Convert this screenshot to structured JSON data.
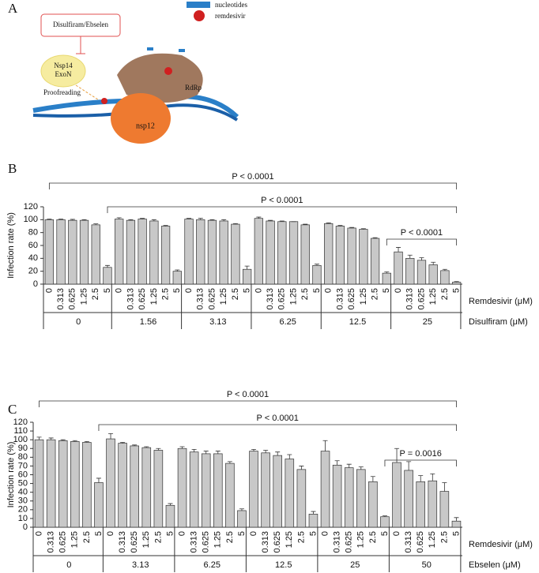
{
  "diagram": {
    "label": "A",
    "inhibitor": "Disulfiram/Ebselen",
    "enzyme_line1": "Nsp14",
    "enzyme_line2": "ExoN",
    "process": "Proofreading",
    "legend_nucleotides": "nucleotides",
    "legend_remdesivir": "remdesivir",
    "rdrp": "RdRp",
    "nsp12": "nsp12"
  },
  "chart_data": [
    {
      "type": "bar",
      "label": "B",
      "y_label": "Infection rate (%)",
      "x_label": "Remdesivir (μM)",
      "group_label": "Disulfiram (μM)",
      "categories": [
        "0",
        "0.313",
        "0.625",
        "1.25",
        "2.5",
        "5",
        "0",
        "0.313",
        "0.625",
        "1.25",
        "2.5",
        "5",
        "0",
        "0.313",
        "0.625",
        "1.25",
        "2.5",
        "5",
        "0",
        "0.313",
        "0.625",
        "1.25",
        "2.5",
        "5",
        "0",
        "0.313",
        "0.625",
        "1.25",
        "2.5",
        "5",
        "0",
        "0.313",
        "0.625",
        "1.25",
        "2.5",
        "5"
      ],
      "groups": [
        "0",
        "1.56",
        "3.13",
        "6.25",
        "12.5",
        "25"
      ],
      "values": [
        100,
        100,
        99,
        99,
        92,
        26,
        101,
        99,
        101,
        98,
        90,
        20,
        101,
        100,
        99,
        98,
        93,
        23,
        102,
        98,
        97,
        97,
        92,
        29,
        94,
        90,
        87,
        85,
        71,
        17,
        50,
        40,
        37,
        30,
        21,
        3
      ],
      "errors": [
        1,
        1,
        1.5,
        1,
        1.5,
        3,
        2,
        1,
        1,
        2,
        1,
        2,
        1,
        2,
        1,
        2,
        1,
        5,
        2,
        1,
        1,
        0,
        1,
        2,
        1,
        1,
        1,
        1,
        1,
        2,
        7,
        5,
        4,
        4,
        2,
        1
      ],
      "annotations": [
        "P < 0.0001",
        "P < 0.0001",
        "P < 0.0001"
      ],
      "ylim": [
        0,
        120
      ],
      "yticks": [
        0,
        20,
        40,
        60,
        80,
        100,
        120
      ],
      "color": "#c8c8c8"
    },
    {
      "type": "bar",
      "label": "C",
      "y_label": "Infection rate (%)",
      "x_label": "Remdesivir (μM)",
      "group_label": "Ebselen (μM)",
      "categories": [
        "0",
        "0.313",
        "0.625",
        "1.25",
        "2.5",
        "5",
        "0",
        "0.313",
        "0.625",
        "1.25",
        "2.5",
        "5",
        "0",
        "0.313",
        "0.625",
        "1.25",
        "2.5",
        "5",
        "0",
        "0.313",
        "0.625",
        "1.25",
        "2.5",
        "5",
        "0",
        "0.313",
        "0.625",
        "1.25",
        "2.5",
        "5",
        "0",
        "0.313",
        "0.625",
        "1.25",
        "2.5",
        "5"
      ],
      "groups": [
        "0",
        "3.13",
        "6.25",
        "12.5",
        "25",
        "50"
      ],
      "values": [
        100,
        100,
        99,
        98,
        97,
        51,
        101,
        96,
        93,
        91,
        88,
        25,
        90,
        86,
        84,
        84,
        73,
        19,
        87,
        85,
        82,
        78,
        66,
        15,
        87,
        71,
        68,
        66,
        52,
        12,
        74,
        65,
        52,
        53,
        41,
        7
      ],
      "errors": [
        3,
        2,
        1,
        1,
        1,
        5,
        6,
        1,
        1,
        1,
        2,
        2,
        2,
        3,
        3,
        3,
        2,
        2,
        2,
        3,
        4,
        5,
        4,
        3,
        12,
        5,
        4,
        3,
        6,
        1,
        16,
        10,
        7,
        8,
        10,
        4
      ],
      "annotations": [
        "P < 0.0001",
        "P < 0.0001",
        "P = 0.0016"
      ],
      "ylim": [
        0,
        120
      ],
      "yticks": [
        0,
        10,
        20,
        30,
        40,
        50,
        60,
        70,
        80,
        90,
        100,
        110,
        120
      ],
      "color": "#c8c8c8"
    }
  ]
}
